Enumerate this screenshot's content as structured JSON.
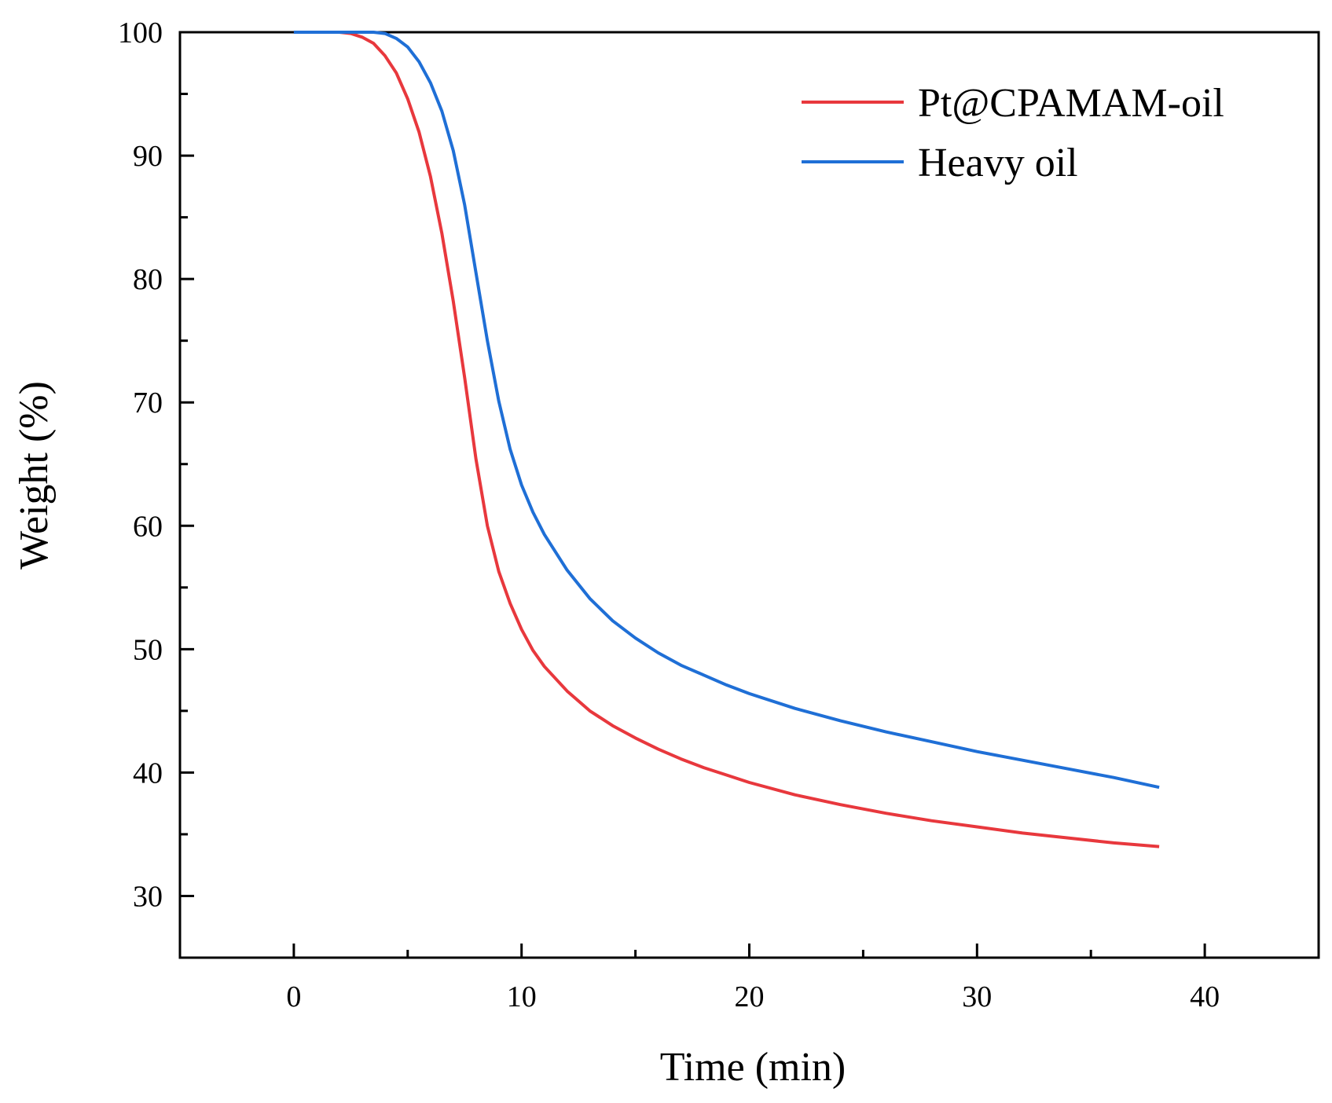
{
  "chart_data": {
    "type": "line",
    "title": "",
    "xlabel": "Time (min)",
    "ylabel": "Weight (%)",
    "xlim": [
      -5,
      45
    ],
    "ylim": [
      25,
      100
    ],
    "xticks": [
      0,
      10,
      20,
      30,
      40
    ],
    "yticks": [
      30,
      40,
      50,
      60,
      70,
      80,
      90,
      100
    ],
    "legend_position": "top-right",
    "grid": false,
    "series": [
      {
        "name": "Pt@CPAMAM-oil",
        "color": "#e8383d",
        "x": [
          0,
          2,
          2.5,
          3,
          3.5,
          4,
          4.5,
          5,
          5.5,
          6,
          6.5,
          7,
          7.5,
          8,
          8.5,
          9,
          9.5,
          10,
          10.5,
          11,
          12,
          13,
          14,
          15,
          16,
          17,
          18,
          19,
          20,
          22,
          24,
          26,
          28,
          30,
          32,
          34,
          36,
          38
        ],
        "y": [
          100,
          100,
          99.9,
          99.6,
          99.1,
          98.1,
          96.7,
          94.6,
          91.9,
          88.3,
          83.7,
          78.2,
          72.0,
          65.4,
          60.0,
          56.3,
          53.7,
          51.6,
          49.9,
          48.6,
          46.6,
          45.0,
          43.8,
          42.8,
          41.9,
          41.1,
          40.4,
          39.8,
          39.2,
          38.2,
          37.4,
          36.7,
          36.1,
          35.6,
          35.1,
          34.7,
          34.3,
          34.0
        ]
      },
      {
        "name": "Heavy oil",
        "color": "#1f6fd6",
        "x": [
          0,
          3.5,
          4,
          4.5,
          5,
          5.5,
          6,
          6.5,
          7,
          7.5,
          8,
          8.5,
          9,
          9.5,
          10,
          10.5,
          11,
          12,
          13,
          14,
          15,
          16,
          17,
          18,
          19,
          20,
          22,
          24,
          26,
          28,
          30,
          32,
          34,
          36,
          38
        ],
        "y": [
          100,
          100,
          99.9,
          99.5,
          98.8,
          97.6,
          95.9,
          93.6,
          90.4,
          86.0,
          80.5,
          75.0,
          70.1,
          66.2,
          63.3,
          61.1,
          59.3,
          56.4,
          54.1,
          52.3,
          50.9,
          49.7,
          48.7,
          47.9,
          47.1,
          46.4,
          45.2,
          44.2,
          43.3,
          42.5,
          41.7,
          41.0,
          40.3,
          39.6,
          38.8
        ]
      }
    ]
  }
}
